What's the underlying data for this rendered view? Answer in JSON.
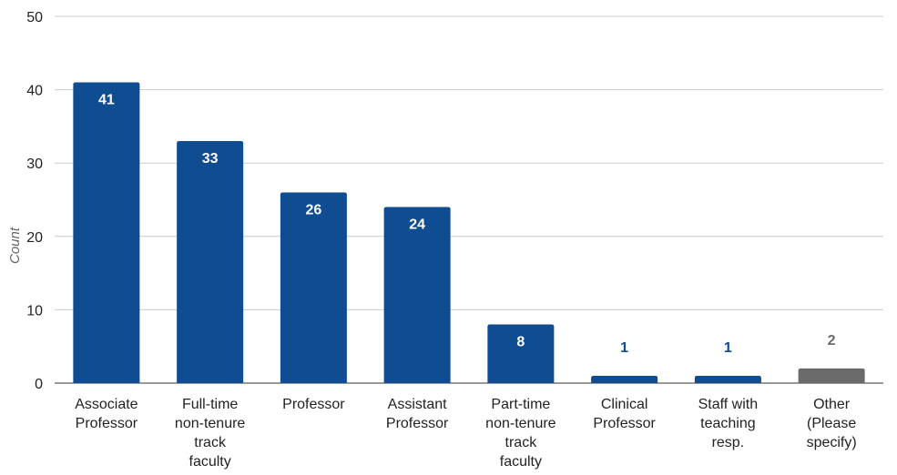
{
  "chart_data": {
    "type": "bar",
    "categories": [
      [
        "Associate",
        "Professor"
      ],
      [
        "Full-time",
        "non-tenure",
        "track",
        "faculty"
      ],
      [
        "Professor"
      ],
      [
        "Assistant",
        "Professor"
      ],
      [
        "Part-time",
        "non-tenure",
        "track",
        "faculty"
      ],
      [
        "Clinical",
        "Professor"
      ],
      [
        "Staff with",
        "teaching",
        "resp."
      ],
      [
        "Other",
        "(Please",
        "specify)"
      ]
    ],
    "values": [
      41,
      33,
      26,
      24,
      8,
      1,
      1,
      2
    ],
    "bar_colors": [
      "#0f4c92",
      "#0f4c92",
      "#0f4c92",
      "#0f4c92",
      "#0f4c92",
      "#0f4c92",
      "#0f4c92",
      "#6b6b6b"
    ],
    "data_labels": [
      "41",
      "33",
      "26",
      "24",
      "8",
      "1",
      "1",
      "2"
    ],
    "ylabel": "Count",
    "ylim": [
      0,
      50
    ],
    "yticks": [
      0,
      10,
      20,
      30,
      40,
      50
    ],
    "grid": true,
    "colors": {
      "bar": "#0f4c92",
      "bar_other": "#6b6b6b",
      "label_inside": "#ffffff",
      "gridline": "#cccccc",
      "baseline": "#333333"
    }
  }
}
